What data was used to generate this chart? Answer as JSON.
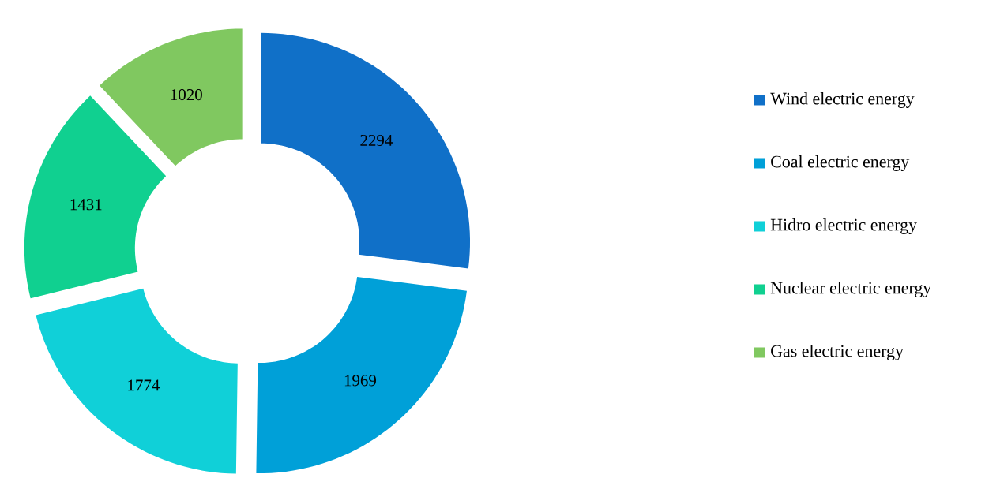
{
  "chart_data": {
    "type": "donut",
    "categories": [
      "Wind electric energy",
      "Coal electric energy",
      "Hidro electric energy",
      "Nuclear electric energy",
      "Gas electric energy"
    ],
    "values": [
      2294,
      1969,
      1774,
      1431,
      1020
    ],
    "colors": [
      "#1070c8",
      "#00a0d8",
      "#10d0d8",
      "#10d090",
      "#80c860"
    ],
    "data_labels": true,
    "legend": "right"
  }
}
